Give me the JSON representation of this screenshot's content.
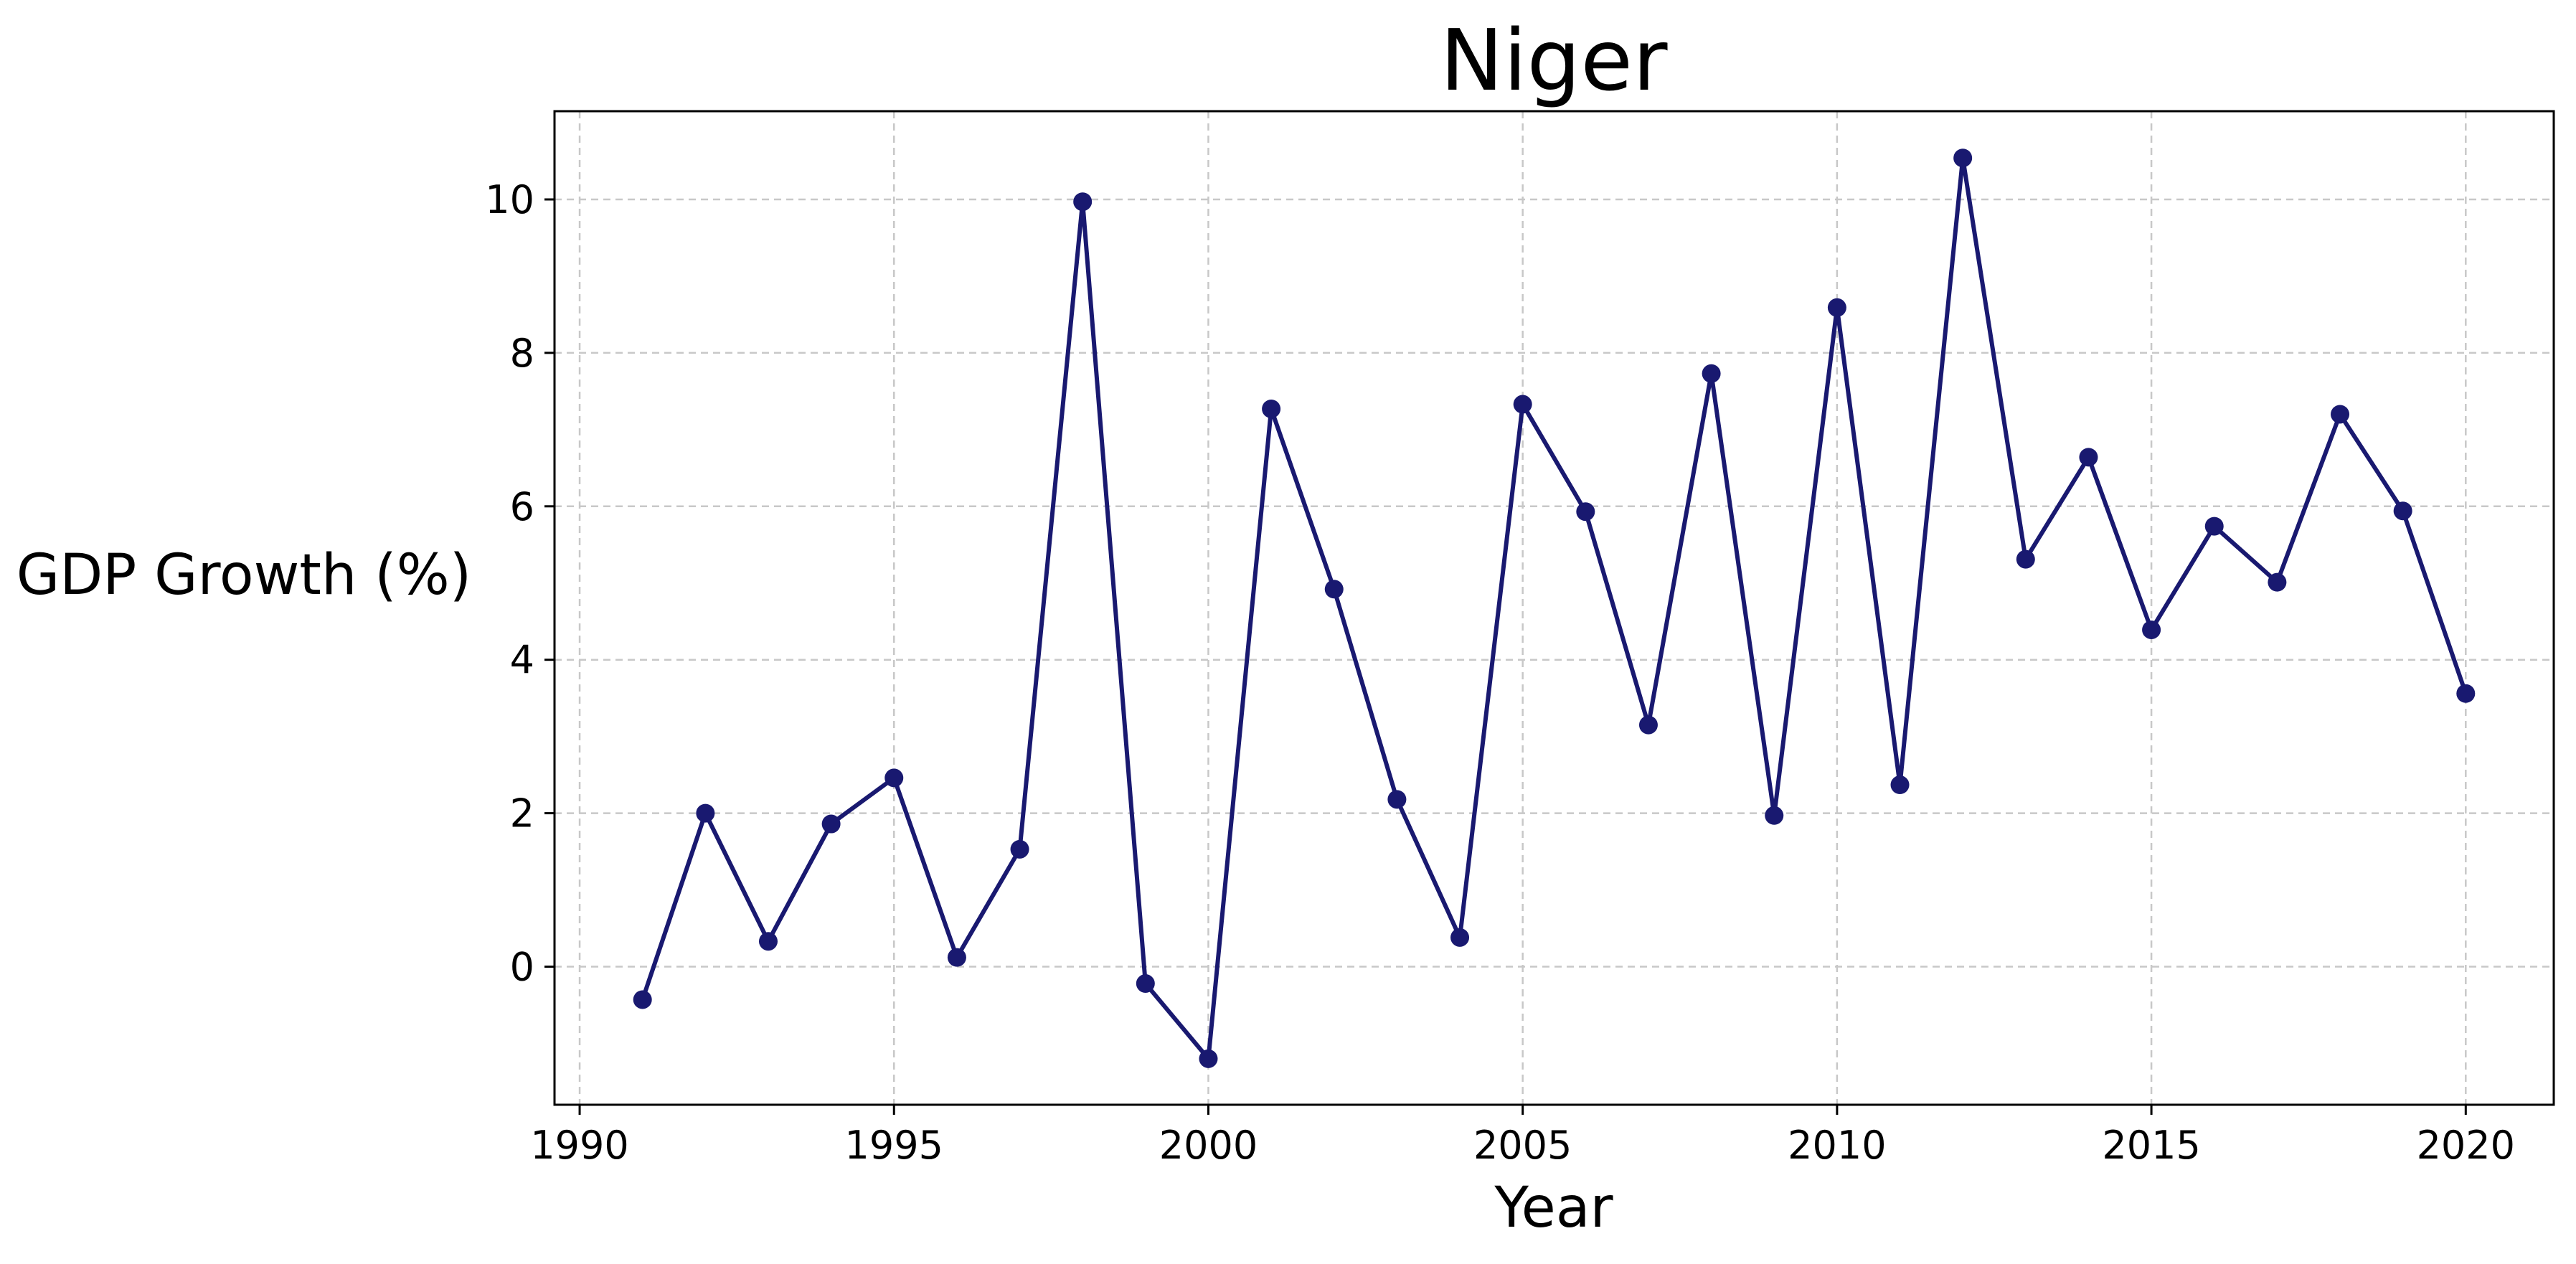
{
  "chart_data": {
    "type": "line",
    "title": "Niger",
    "xlabel": "Year",
    "ylabel": "GDP Growth (%)",
    "xlim": [
      1989.6,
      2021.4
    ],
    "ylim": [
      -1.8,
      11.15
    ],
    "x_ticks": [
      1990,
      1995,
      2000,
      2005,
      2010,
      2015,
      2020
    ],
    "y_ticks": [
      0,
      2,
      4,
      6,
      8,
      10
    ],
    "grid": true,
    "legend": "none",
    "series": [
      {
        "color": "#191970",
        "x": [
          1991,
          1992,
          1993,
          1994,
          1995,
          1996,
          1997,
          1998,
          1999,
          2000,
          2001,
          2002,
          2003,
          2004,
          2005,
          2006,
          2007,
          2008,
          2009,
          2010,
          2011,
          2012,
          2013,
          2014,
          2015,
          2016,
          2017,
          2018,
          2019,
          2020
        ],
        "values": [
          -0.43,
          2.0,
          0.33,
          1.86,
          2.46,
          0.12,
          1.53,
          9.97,
          -0.22,
          -1.2,
          7.27,
          4.92,
          2.18,
          0.38,
          7.33,
          5.93,
          3.15,
          7.73,
          1.97,
          8.59,
          2.37,
          10.54,
          5.31,
          6.64,
          4.39,
          5.74,
          5.01,
          7.2,
          5.94,
          3.56
        ]
      }
    ]
  }
}
